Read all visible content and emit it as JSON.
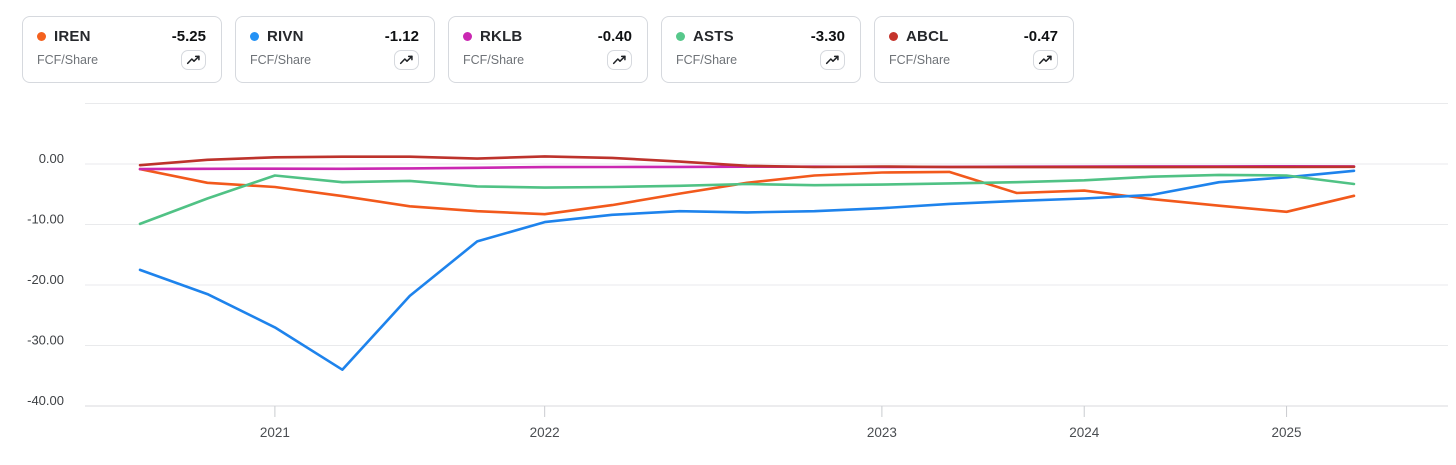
{
  "legend": {
    "cards": [
      {
        "ticker": "IREN",
        "value": "-5.25",
        "metric": "FCF/Share",
        "color": "#f4611e"
      },
      {
        "ticker": "RIVN",
        "value": "-1.12",
        "metric": "FCF/Share",
        "color": "#2492f5"
      },
      {
        "ticker": "RKLB",
        "value": "-0.40",
        "metric": "FCF/Share",
        "color": "#ca28b2"
      },
      {
        "ticker": "ASTS",
        "value": "-3.30",
        "metric": "FCF/Share",
        "color": "#57c88b"
      },
      {
        "ticker": "ABCL",
        "value": "-0.47",
        "metric": "FCF/Share",
        "color": "#c5342c"
      }
    ]
  },
  "chart_data": {
    "type": "line",
    "title": "",
    "ylabel": "FCF/Share",
    "xlabel": "",
    "grid": true,
    "legend_position": "top-cards",
    "y_axis": {
      "range": [
        -42,
        11
      ],
      "gridlines": [
        {
          "value": 10,
          "label": ""
        },
        {
          "value": 0,
          "label": "0.00"
        },
        {
          "value": -10,
          "label": "-10.00"
        },
        {
          "value": -20,
          "label": "-20.00"
        },
        {
          "value": -30,
          "label": "-30.00"
        },
        {
          "value": -40,
          "label": "-40.00"
        }
      ]
    },
    "x_axis": {
      "num_points": 19,
      "unit": "fiscal quarters (mixed fiscal calendars)",
      "ticks": [
        {
          "label": "2021",
          "index": 2
        },
        {
          "label": "2022",
          "index": 6
        },
        {
          "label": "2023",
          "index": 11
        },
        {
          "label": "2024",
          "index": 14
        },
        {
          "label": "2025",
          "index": 17
        }
      ]
    },
    "series": [
      {
        "name": "IREN",
        "color": "#f2591c",
        "values": [
          -0.85,
          -3.1,
          -3.8,
          -5.3,
          -7.0,
          -7.8,
          -8.3,
          -6.8,
          -4.9,
          -3.1,
          -1.9,
          -1.4,
          -1.3,
          -4.8,
          -4.4,
          -5.8,
          -6.9,
          -7.9,
          -5.25
        ]
      },
      {
        "name": "RIVN",
        "color": "#1e83ec",
        "values": [
          -17.5,
          -21.5,
          -27.0,
          -34.0,
          -21.8,
          -12.8,
          -9.6,
          -8.4,
          -7.8,
          -8.0,
          -7.8,
          -7.3,
          -6.6,
          -6.1,
          -5.7,
          -5.1,
          -3.0,
          -2.2,
          -1.12
        ]
      },
      {
        "name": "RKLB",
        "color": "#ca28b2",
        "values": [
          -0.85,
          -0.8,
          -0.78,
          -0.8,
          -0.72,
          -0.62,
          -0.52,
          -0.5,
          -0.48,
          -0.45,
          -0.45,
          -0.5,
          -0.48,
          -0.45,
          -0.42,
          -0.4,
          -0.4,
          -0.38,
          -0.4
        ]
      },
      {
        "name": "ASTS",
        "color": "#50c285",
        "values": [
          -9.9,
          -5.7,
          -1.9,
          -3.0,
          -2.8,
          -3.7,
          -3.9,
          -3.8,
          -3.6,
          -3.3,
          -3.5,
          -3.4,
          -3.2,
          -3.0,
          -2.7,
          -2.1,
          -1.8,
          -1.9,
          -3.3
        ]
      },
      {
        "name": "ABCL",
        "color": "#bd332c",
        "values": [
          -0.2,
          0.7,
          1.1,
          1.2,
          1.2,
          0.9,
          1.25,
          1.0,
          0.4,
          -0.3,
          -0.5,
          -0.42,
          -0.5,
          -0.52,
          -0.52,
          -0.52,
          -0.5,
          -0.5,
          -0.47
        ]
      }
    ]
  }
}
